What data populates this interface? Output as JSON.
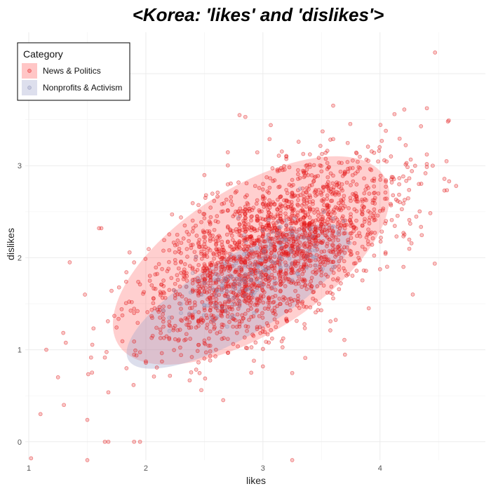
{
  "chart_data": {
    "type": "scatter",
    "title": "<Korea: 'likes' and 'dislikes'>",
    "xlabel": "likes",
    "ylabel": "dislikes",
    "xlim": [
      0.97,
      4.9
    ],
    "ylim": [
      -0.2,
      4.45
    ],
    "x_ticks": [
      1,
      2,
      3,
      4
    ],
    "y_ticks": [
      0,
      1,
      2,
      3
    ],
    "grid": true,
    "legend": {
      "title": "Category",
      "position": "top-left",
      "entries": [
        {
          "label": "News & Politics",
          "color": "#e31a1c"
        },
        {
          "label": "Nonprofits & Activism",
          "color": "#8c92b8"
        }
      ]
    },
    "series": [
      {
        "name": "News & Politics",
        "color": "#e31a1c",
        "n_points": 2200,
        "mean": [
          3.07,
          2.07
        ],
        "sd": [
          0.52,
          0.52
        ],
        "corr": 0.6,
        "ellipse": {
          "center": [
            2.9,
            1.97
          ],
          "semi_major": 1.47,
          "semi_minor": 0.72,
          "angle_deg": 43
        }
      },
      {
        "name": "Nonprofits & Activism",
        "color": "#8c92b8",
        "n_points": 180,
        "mean": [
          2.95,
          1.88
        ],
        "sd": [
          0.32,
          0.28
        ],
        "corr": 0.65,
        "ellipse": {
          "center": [
            2.79,
            1.58
          ],
          "semi_major": 1.17,
          "semi_minor": 0.4,
          "angle_deg": 38
        }
      }
    ],
    "outlier_points": [
      [
        4.47,
        4.23
      ],
      [
        4.58,
        3.48
      ],
      [
        4.59,
        2.83
      ],
      [
        4.65,
        2.78
      ],
      [
        4.55,
        2.73
      ],
      [
        4.45,
        3.0
      ],
      [
        2.8,
        3.55
      ],
      [
        2.85,
        3.53
      ],
      [
        1.15,
        1.0
      ],
      [
        1.1,
        0.3
      ],
      [
        1.02,
        -0.18
      ],
      [
        1.5,
        -0.2
      ],
      [
        1.35,
        1.95
      ],
      [
        1.6,
        2.32
      ],
      [
        1.62,
        2.32
      ],
      [
        1.25,
        0.7
      ],
      [
        1.3,
        0.4
      ],
      [
        1.65,
        0.0
      ],
      [
        1.68,
        0.0
      ],
      [
        1.9,
        0.0
      ],
      [
        1.95,
        0.0
      ],
      [
        3.25,
        -0.2
      ],
      [
        4.2,
        1.9
      ],
      [
        4.28,
        1.6
      ]
    ]
  }
}
